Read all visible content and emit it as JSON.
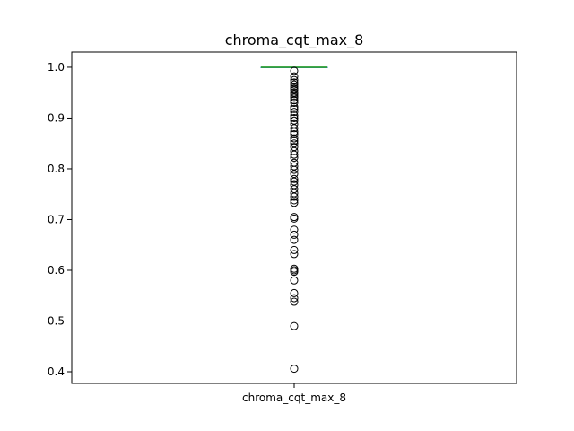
{
  "chart_data": {
    "type": "box",
    "title": "chroma_cqt_max_8",
    "categories": [
      "chroma_cqt_max_8"
    ],
    "xlabel": "",
    "ylabel": "",
    "ylim": [
      0.377,
      1.03
    ],
    "yticks": [
      "0.4",
      "0.5",
      "0.6",
      "0.7",
      "0.8",
      "0.9",
      "1.0"
    ],
    "ytick_values": [
      0.4,
      0.5,
      0.6,
      0.7,
      0.8,
      0.9,
      1.0
    ],
    "grid": false,
    "series": [
      {
        "min": 1.0,
        "q1": 1.0,
        "median": 1.0,
        "q3": 1.0,
        "max": 1.0,
        "outliers": [
          0.993,
          0.982,
          0.975,
          0.97,
          0.966,
          0.962,
          0.958,
          0.955,
          0.95,
          0.947,
          0.943,
          0.94,
          0.935,
          0.93,
          0.922,
          0.918,
          0.912,
          0.905,
          0.9,
          0.895,
          0.888,
          0.88,
          0.873,
          0.868,
          0.86,
          0.855,
          0.85,
          0.843,
          0.835,
          0.828,
          0.822,
          0.812,
          0.805,
          0.798,
          0.79,
          0.78,
          0.775,
          0.768,
          0.76,
          0.752,
          0.745,
          0.738,
          0.733,
          0.705,
          0.702,
          0.68,
          0.67,
          0.66,
          0.64,
          0.632,
          0.603,
          0.6,
          0.597,
          0.58,
          0.555,
          0.545,
          0.538,
          0.49,
          0.406
        ]
      }
    ],
    "colors": {
      "median": "#2ca02c",
      "box": "#1f77b4",
      "outlier": "#000000"
    }
  }
}
